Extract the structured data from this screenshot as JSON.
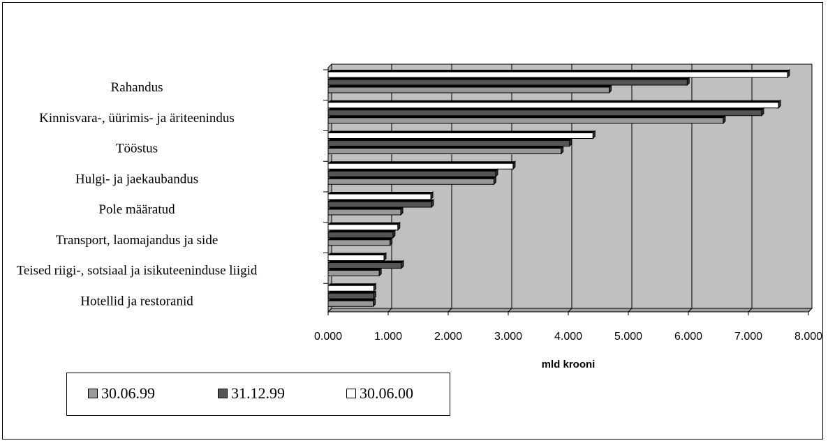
{
  "chart_data": {
    "type": "bar",
    "orientation": "horizontal",
    "categories": [
      "Rahandus",
      "Kinnisvara-, üürimis- ja äriteenindus",
      "Tööstus",
      "Hulgi- ja jaekaubandus",
      "Pole määratud",
      "Transport, laomajandus ja side",
      "Teised riigi-, sotsiaal ja isikuteeninduse liigid",
      "Hotellid ja restoranid"
    ],
    "series": [
      {
        "name": "30.06.99",
        "color": "#999999",
        "values": [
          4.68,
          6.58,
          3.88,
          2.76,
          1.21,
          1.03,
          0.85,
          0.75
        ]
      },
      {
        "name": "31.12.99",
        "color": "#555555",
        "values": [
          5.98,
          7.22,
          4.02,
          2.79,
          1.72,
          1.08,
          1.22,
          0.76
        ]
      },
      {
        "name": "30.06.00",
        "color": "#ffffff",
        "values": [
          7.65,
          7.5,
          4.41,
          3.08,
          1.71,
          1.16,
          0.93,
          0.76
        ]
      }
    ],
    "xlabel": "mld krooni",
    "xlim": [
      0,
      8
    ],
    "xticks": [
      "0.000",
      "1.000",
      "2.000",
      "3.000",
      "4.000",
      "5.000",
      "6.000",
      "7.000",
      "8.000"
    ],
    "grid": true,
    "legend_position": "bottom-left",
    "plot_background": "#c0c0c0"
  }
}
